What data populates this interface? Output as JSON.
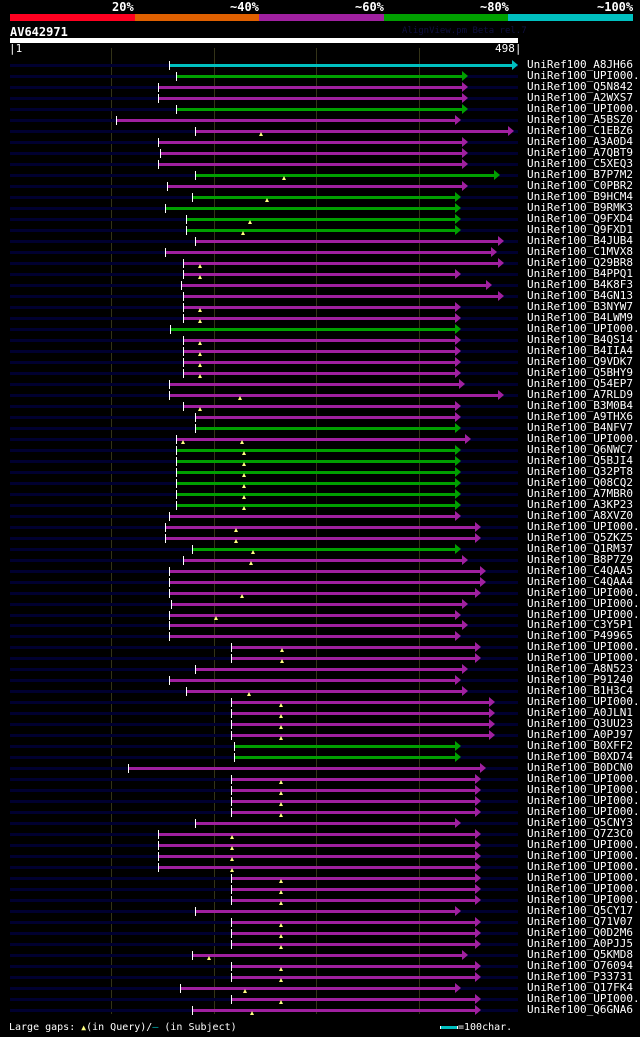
{
  "header": {
    "percent_labels": [
      "20%",
      "~40%",
      "~60%",
      "~80%",
      "~100%"
    ],
    "scale_colors": [
      "#ff0020",
      "#e06000",
      "#a020a0",
      "#00a000",
      "#00c0c0"
    ],
    "query_id": "AV642971",
    "version_text": "AlignView.pm Beta rel.7",
    "query_start": "|1",
    "query_end": "498|",
    "query_length": 498
  },
  "colors": {
    "c": "#00c0c0",
    "g": "#00a000",
    "m": "#a020a0",
    "gap": "#ffff80",
    "background_line": "#000030"
  },
  "rows": [
    {
      "label": "UniRef100_A8JH66",
      "c": "c",
      "s": 157,
      "e": 492,
      "g": []
    },
    {
      "label": "UniRef100_UPI000..",
      "c": "g",
      "s": 163,
      "e": 443,
      "g": []
    },
    {
      "label": "UniRef100_Q5N842",
      "c": "m",
      "s": 146,
      "e": 443,
      "g": []
    },
    {
      "label": "UniRef100_A2WXS7",
      "c": "m",
      "s": 146,
      "e": 443,
      "g": []
    },
    {
      "label": "UniRef100_UPI000..",
      "c": "g",
      "s": 163,
      "e": 443,
      "g": []
    },
    {
      "label": "UniRef100_A5BSZ0",
      "c": "m",
      "s": 105,
      "e": 436,
      "g": []
    },
    {
      "label": "UniRef100_C1EBZ6",
      "c": "m",
      "s": 182,
      "e": 488,
      "g": [
        247
      ]
    },
    {
      "label": "UniRef100_A3A0D4",
      "c": "m",
      "s": 146,
      "e": 443,
      "g": []
    },
    {
      "label": "UniRef100_A7QBT9",
      "c": "m",
      "s": 148,
      "e": 443,
      "g": []
    },
    {
      "label": "UniRef100_C5XEQ3",
      "c": "m",
      "s": 146,
      "e": 443,
      "g": []
    },
    {
      "label": "UniRef100_B7P7M2",
      "c": "g",
      "s": 182,
      "e": 475,
      "g": [
        269
      ]
    },
    {
      "label": "UniRef100_C0PBR2",
      "c": "m",
      "s": 155,
      "e": 443,
      "g": []
    },
    {
      "label": "UniRef100_B9HCM4",
      "c": "g",
      "s": 179,
      "e": 436,
      "g": [
        252
      ]
    },
    {
      "label": "UniRef100_B9RMK3",
      "c": "g",
      "s": 153,
      "e": 436,
      "g": []
    },
    {
      "label": "UniRef100_Q9FXD4",
      "c": "g",
      "s": 173,
      "e": 436,
      "g": [
        236
      ]
    },
    {
      "label": "UniRef100_Q9FXD1",
      "c": "g",
      "s": 173,
      "e": 436,
      "g": [
        229
      ]
    },
    {
      "label": "UniRef100_B4JUB4",
      "c": "m",
      "s": 182,
      "e": 478,
      "g": []
    },
    {
      "label": "UniRef100_C1MVX8",
      "c": "m",
      "s": 153,
      "e": 472,
      "g": []
    },
    {
      "label": "UniRef100_Q29BR8",
      "c": "m",
      "s": 170,
      "e": 478,
      "g": [
        187
      ]
    },
    {
      "label": "UniRef100_B4PPQ1",
      "c": "m",
      "s": 170,
      "e": 436,
      "g": [
        187
      ]
    },
    {
      "label": "UniRef100_B4K8F3",
      "c": "m",
      "s": 168,
      "e": 467,
      "g": []
    },
    {
      "label": "UniRef100_B4GN13",
      "c": "m",
      "s": 170,
      "e": 478,
      "g": []
    },
    {
      "label": "UniRef100_B3NYW7",
      "c": "m",
      "s": 170,
      "e": 436,
      "g": [
        187
      ]
    },
    {
      "label": "UniRef100_B4LWM9",
      "c": "m",
      "s": 170,
      "e": 436,
      "g": [
        187
      ]
    },
    {
      "label": "UniRef100_UPI000..",
      "c": "g",
      "s": 158,
      "e": 436,
      "g": []
    },
    {
      "label": "UniRef100_B4QS14",
      "c": "m",
      "s": 170,
      "e": 436,
      "g": [
        187
      ]
    },
    {
      "label": "UniRef100_B4IIA4",
      "c": "m",
      "s": 170,
      "e": 436,
      "g": [
        187
      ]
    },
    {
      "label": "UniRef100_Q9VDK7",
      "c": "m",
      "s": 170,
      "e": 436,
      "g": [
        187
      ]
    },
    {
      "label": "UniRef100_Q5BHY9",
      "c": "m",
      "s": 170,
      "e": 436,
      "g": [
        187
      ]
    },
    {
      "label": "UniRef100_Q54EP7",
      "c": "m",
      "s": 157,
      "e": 440,
      "g": []
    },
    {
      "label": "UniRef100_A7RLD9",
      "c": "m",
      "s": 157,
      "e": 478,
      "g": [
        226
      ]
    },
    {
      "label": "UniRef100_B3M0B4",
      "c": "m",
      "s": 170,
      "e": 436,
      "g": [
        187
      ]
    },
    {
      "label": "UniRef100_A9THX6",
      "c": "m",
      "s": 182,
      "e": 436,
      "g": []
    },
    {
      "label": "UniRef100_B4NFV7",
      "c": "g",
      "s": 182,
      "e": 436,
      "g": []
    },
    {
      "label": "UniRef100_UPI000..",
      "c": "m",
      "s": 163,
      "e": 446,
      "g": [
        170,
        228
      ]
    },
    {
      "label": "UniRef100_Q6NWC7",
      "c": "g",
      "s": 163,
      "e": 436,
      "g": [
        230
      ]
    },
    {
      "label": "UniRef100_Q5BJI4",
      "c": "g",
      "s": 163,
      "e": 436,
      "g": [
        230
      ]
    },
    {
      "label": "UniRef100_Q32PT8",
      "c": "g",
      "s": 163,
      "e": 436,
      "g": [
        230
      ]
    },
    {
      "label": "UniRef100_Q08CQ2",
      "c": "g",
      "s": 163,
      "e": 436,
      "g": [
        230
      ]
    },
    {
      "label": "UniRef100_A7MBR0",
      "c": "g",
      "s": 163,
      "e": 436,
      "g": [
        230
      ]
    },
    {
      "label": "UniRef100_A3KP23",
      "c": "g",
      "s": 163,
      "e": 436,
      "g": [
        230
      ]
    },
    {
      "label": "UniRef100_A8XVZ0",
      "c": "m",
      "s": 157,
      "e": 436,
      "g": []
    },
    {
      "label": "UniRef100_UPI000..",
      "c": "m",
      "s": 153,
      "e": 456,
      "g": [
        222
      ]
    },
    {
      "label": "UniRef100_Q5ZKZ5",
      "c": "m",
      "s": 153,
      "e": 456,
      "g": [
        222
      ]
    },
    {
      "label": "UniRef100_Q1RM37",
      "c": "g",
      "s": 179,
      "e": 436,
      "g": [
        239
      ]
    },
    {
      "label": "UniRef100_B8P7Z9",
      "c": "m",
      "s": 170,
      "e": 443,
      "g": [
        237
      ]
    },
    {
      "label": "UniRef100_C4QAA5",
      "c": "m",
      "s": 157,
      "e": 461,
      "g": []
    },
    {
      "label": "UniRef100_C4QAA4",
      "c": "m",
      "s": 157,
      "e": 461,
      "g": []
    },
    {
      "label": "UniRef100_UPI000..",
      "c": "m",
      "s": 157,
      "e": 456,
      "g": [
        228
      ]
    },
    {
      "label": "UniRef100_UPI000..",
      "c": "m",
      "s": 159,
      "e": 443,
      "g": []
    },
    {
      "label": "UniRef100_UPI000..",
      "c": "m",
      "s": 157,
      "e": 436,
      "g": [
        203
      ]
    },
    {
      "label": "UniRef100_C3Y5P1",
      "c": "m",
      "s": 157,
      "e": 443,
      "g": []
    },
    {
      "label": "UniRef100_P49965",
      "c": "m",
      "s": 157,
      "e": 436,
      "g": []
    },
    {
      "label": "UniRef100_UPI000..",
      "c": "m",
      "s": 217,
      "e": 456,
      "g": [
        267
      ]
    },
    {
      "label": "UniRef100_UPI000..",
      "c": "m",
      "s": 217,
      "e": 456,
      "g": [
        267
      ]
    },
    {
      "label": "UniRef100_A8N523",
      "c": "m",
      "s": 182,
      "e": 443,
      "g": []
    },
    {
      "label": "UniRef100_P91240",
      "c": "m",
      "s": 157,
      "e": 436,
      "g": []
    },
    {
      "label": "UniRef100_B1H3C4",
      "c": "m",
      "s": 173,
      "e": 443,
      "g": [
        235
      ]
    },
    {
      "label": "UniRef100_UPI000..",
      "c": "m",
      "s": 217,
      "e": 470,
      "g": [
        266
      ]
    },
    {
      "label": "UniRef100_A0JLN1",
      "c": "m",
      "s": 217,
      "e": 470,
      "g": [
        266
      ]
    },
    {
      "label": "UniRef100_Q3UU23",
      "c": "m",
      "s": 217,
      "e": 470,
      "g": [
        266
      ]
    },
    {
      "label": "UniRef100_A0PJ97",
      "c": "m",
      "s": 217,
      "e": 470,
      "g": [
        266
      ]
    },
    {
      "label": "UniRef100_B0XFF2",
      "c": "g",
      "s": 220,
      "e": 436,
      "g": []
    },
    {
      "label": "UniRef100_B0XD74",
      "c": "g",
      "s": 220,
      "e": 436,
      "g": []
    },
    {
      "label": "UniRef100_B0DCN0",
      "c": "m",
      "s": 116,
      "e": 461,
      "g": []
    },
    {
      "label": "UniRef100_UPI000..",
      "c": "m",
      "s": 217,
      "e": 456,
      "g": [
        266
      ]
    },
    {
      "label": "UniRef100_UPI000..",
      "c": "m",
      "s": 217,
      "e": 456,
      "g": [
        266
      ]
    },
    {
      "label": "UniRef100_UPI000..",
      "c": "m",
      "s": 217,
      "e": 456,
      "g": [
        266
      ]
    },
    {
      "label": "UniRef100_UPI000..",
      "c": "m",
      "s": 217,
      "e": 456,
      "g": [
        266
      ]
    },
    {
      "label": "UniRef100_Q5CNY3",
      "c": "m",
      "s": 182,
      "e": 436,
      "g": []
    },
    {
      "label": "UniRef100_Q7Z3C0",
      "c": "m",
      "s": 146,
      "e": 456,
      "g": [
        218
      ]
    },
    {
      "label": "UniRef100_UPI000..",
      "c": "m",
      "s": 146,
      "e": 456,
      "g": [
        218
      ]
    },
    {
      "label": "UniRef100_UPI000..",
      "c": "m",
      "s": 146,
      "e": 456,
      "g": [
        218
      ]
    },
    {
      "label": "UniRef100_UPI000..",
      "c": "m",
      "s": 146,
      "e": 456,
      "g": [
        218
      ]
    },
    {
      "label": "UniRef100_UPI000..",
      "c": "m",
      "s": 217,
      "e": 456,
      "g": [
        266
      ]
    },
    {
      "label": "UniRef100_UPI000..",
      "c": "m",
      "s": 217,
      "e": 456,
      "g": [
        266
      ]
    },
    {
      "label": "UniRef100_UPI000..",
      "c": "m",
      "s": 217,
      "e": 456,
      "g": [
        266
      ]
    },
    {
      "label": "UniRef100_Q5CY17",
      "c": "m",
      "s": 182,
      "e": 436,
      "g": []
    },
    {
      "label": "UniRef100_Q71V07",
      "c": "m",
      "s": 217,
      "e": 456,
      "g": [
        266
      ]
    },
    {
      "label": "UniRef100_Q0D2M6",
      "c": "m",
      "s": 217,
      "e": 456,
      "g": [
        266
      ]
    },
    {
      "label": "UniRef100_A0PJJ5",
      "c": "m",
      "s": 217,
      "e": 456,
      "g": [
        266
      ]
    },
    {
      "label": "UniRef100_Q5KMD8",
      "c": "m",
      "s": 179,
      "e": 443,
      "g": [
        196
      ]
    },
    {
      "label": "UniRef100_O76094",
      "c": "m",
      "s": 217,
      "e": 456,
      "g": [
        266
      ]
    },
    {
      "label": "UniRef100_P33731",
      "c": "m",
      "s": 217,
      "e": 456,
      "g": [
        266
      ]
    },
    {
      "label": "UniRef100_Q17FK4",
      "c": "m",
      "s": 167,
      "e": 436,
      "g": [
        231
      ]
    },
    {
      "label": "UniRef100_UPI000..",
      "c": "m",
      "s": 217,
      "e": 456,
      "g": [
        266
      ]
    },
    {
      "label": "UniRef100_Q6GNA6",
      "c": "m",
      "s": 179,
      "e": 456,
      "g": [
        238
      ]
    }
  ],
  "legend": {
    "gaps_prefix": "Large gaps:",
    "query_marker": "▲",
    "query_text": "(in Query)/",
    "subject_marker": "–",
    "subject_text": " (in Subject)",
    "scale_text": "=100char."
  }
}
